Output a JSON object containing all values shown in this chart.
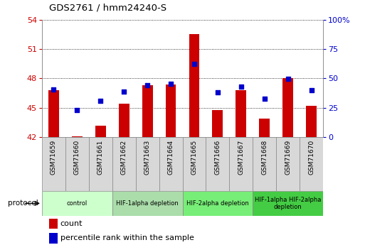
{
  "title": "GDS2761 / hmm24240-S",
  "samples": [
    "GSM71659",
    "GSM71660",
    "GSM71661",
    "GSM71662",
    "GSM71663",
    "GSM71664",
    "GSM71665",
    "GSM71666",
    "GSM71667",
    "GSM71668",
    "GSM71669",
    "GSM71670"
  ],
  "bar_values": [
    46.8,
    42.1,
    43.2,
    45.4,
    47.3,
    47.4,
    52.5,
    44.8,
    46.8,
    43.9,
    48.0,
    45.2
  ],
  "dot_values": [
    40.5,
    23.0,
    31.0,
    39.0,
    44.5,
    45.5,
    62.5,
    38.0,
    43.0,
    33.0,
    49.5,
    40.0
  ],
  "ylim_left": [
    42,
    54
  ],
  "ylim_right": [
    0,
    100
  ],
  "yticks_left": [
    42,
    45,
    48,
    51,
    54
  ],
  "yticks_right": [
    0,
    25,
    50,
    75,
    100
  ],
  "ytick_labels_right": [
    "0",
    "25",
    "50",
    "75",
    "100%"
  ],
  "bar_color": "#cc0000",
  "dot_color": "#0000cc",
  "bar_base": 42,
  "protocol_groups": [
    {
      "label": "control",
      "start": 0,
      "end": 2,
      "color": "#ccffcc"
    },
    {
      "label": "HIF-1alpha depletion",
      "start": 3,
      "end": 5,
      "color": "#aaddaa"
    },
    {
      "label": "HIF-2alpha depletion",
      "start": 6,
      "end": 8,
      "color": "#77ee77"
    },
    {
      "label": "HIF-1alpha HIF-2alpha\ndepletion",
      "start": 9,
      "end": 11,
      "color": "#44cc44"
    }
  ],
  "bar_width": 0.45,
  "tick_label_color_left": "#cc0000",
  "tick_label_color_right": "#0000cc"
}
